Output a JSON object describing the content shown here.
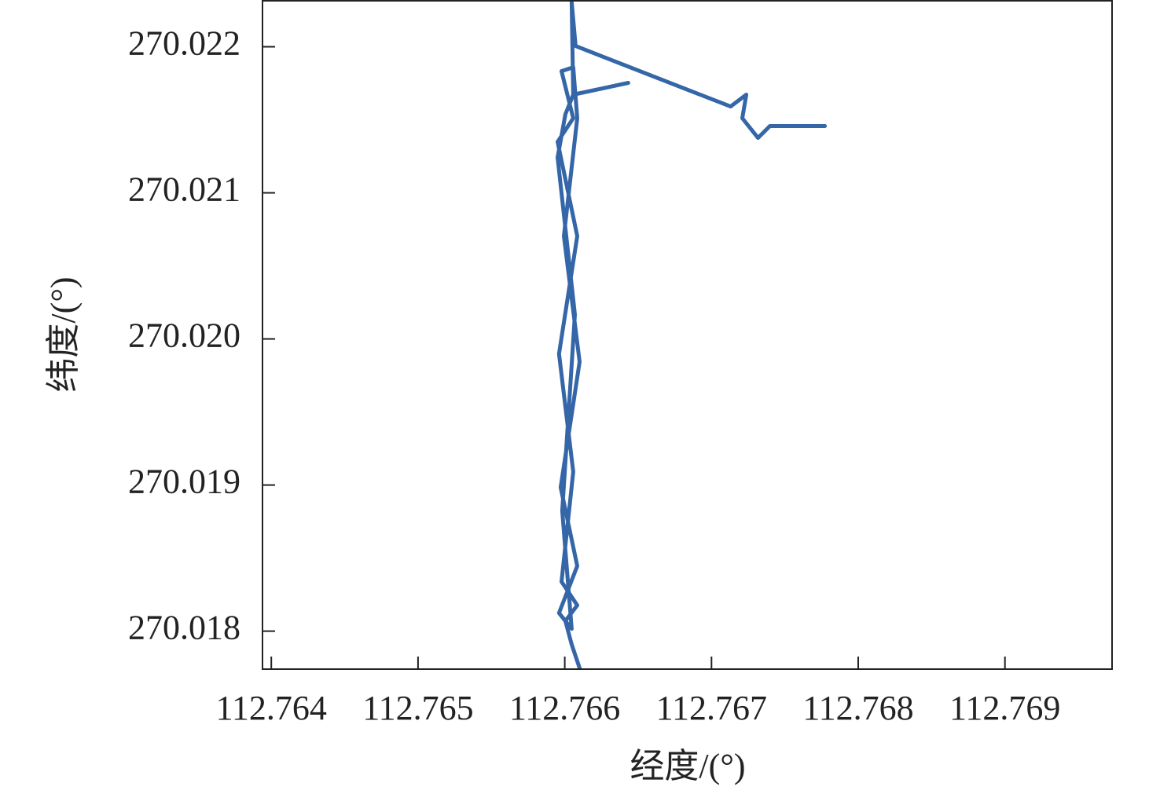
{
  "chart_data": {
    "type": "line",
    "xlabel": "经度/(°)",
    "ylabel": "纬度/(°)",
    "xlim": [
      112.76394,
      112.76973
    ],
    "ylim": [
      270.01774,
      270.02232
    ],
    "xticks": [
      112.764,
      112.765,
      112.766,
      112.767,
      112.768,
      112.769
    ],
    "yticks": [
      270.018,
      270.019,
      {
        "value": 270.02,
        "label": "270.020"
      },
      270.021,
      270.022
    ],
    "color": "#3566a8",
    "x": [
      112.766101,
      112.766047,
      112.766004,
      112.766085,
      112.765978,
      112.766058,
      112.765961,
      112.766085,
      112.765951,
      112.766058,
      112.765978,
      112.766058,
      112.766085,
      112.765994,
      112.766101,
      112.765972,
      112.766085,
      112.765961,
      112.766047,
      112.765983,
      112.766069,
      112.765951,
      112.766004,
      112.766058,
      112.766433,
      112.766058,
      112.766047,
      112.766074,
      112.76713,
      112.767237,
      112.76721,
      112.767317,
      112.767398,
      112.767773
    ],
    "values": [
      270.017747,
      270.017909,
      270.01807,
      270.018177,
      270.018339,
      270.019091,
      270.019898,
      270.020704,
      270.021349,
      270.021511,
      270.021833,
      270.02186,
      270.021511,
      270.020704,
      270.019844,
      270.018984,
      270.018446,
      270.018124,
      270.018016,
      270.018823,
      270.020167,
      270.021242,
      270.021538,
      270.021672,
      270.021753,
      270.021672,
      270.022306,
      270.022005,
      270.021591,
      270.021672,
      270.021511,
      270.021376,
      270.021457,
      270.021457
    ]
  }
}
